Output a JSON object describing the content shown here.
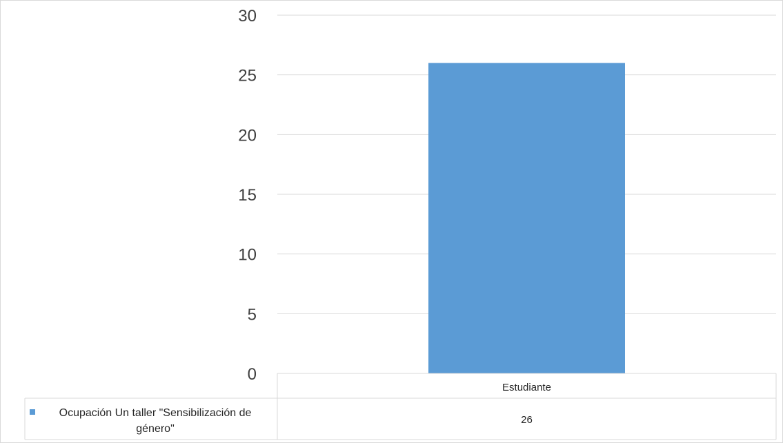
{
  "chart_data": {
    "type": "bar",
    "categories": [
      "Estudiante"
    ],
    "series": [
      {
        "name": "Ocupación Un taller \"Sensibilización de género\"",
        "values": [
          26
        ]
      }
    ],
    "ylim": [
      0,
      30
    ],
    "yticks": [
      0,
      5,
      10,
      15,
      20,
      25,
      30
    ],
    "grid": true,
    "legend": "data-table",
    "colors": {
      "bar": "#5b9bd5",
      "grid": "#d9d9d9",
      "legend_key": "#5b9bd5"
    }
  }
}
